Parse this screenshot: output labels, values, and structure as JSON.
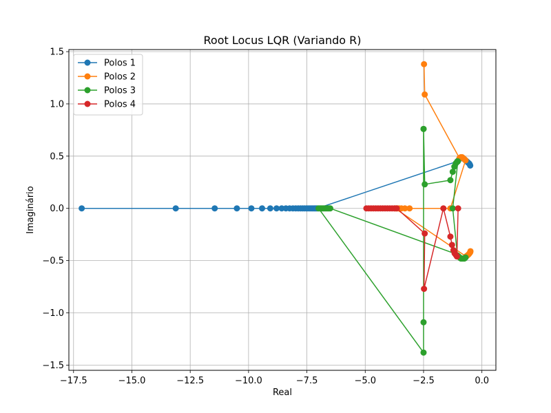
{
  "chart_data": {
    "type": "line",
    "title": "Root Locus LQR (Variando R)",
    "xlabel": "Real",
    "ylabel": "Imaginário",
    "xlim": [
      -17.7,
      0.6
    ],
    "ylim": [
      -1.55,
      1.52
    ],
    "xticks": [
      -17.5,
      -15.0,
      -12.5,
      -10.0,
      -7.5,
      -5.0,
      -2.5,
      0.0
    ],
    "xtick_labels": [
      "−17.5",
      "−15.0",
      "−12.5",
      "−10.0",
      "−7.5",
      "−5.0",
      "−2.5",
      "0.0"
    ],
    "yticks": [
      -1.5,
      -1.0,
      -0.5,
      0.0,
      0.5,
      1.0,
      1.5
    ],
    "ytick_labels": [
      "−1.5",
      "−1.0",
      "−0.5",
      "0.0",
      "0.5",
      "1.0",
      "1.5"
    ],
    "grid": true,
    "legend_position": "top-left",
    "series": [
      {
        "name": "Polos 1",
        "color": "#1f77b4",
        "points": [
          [
            -17.15,
            0
          ],
          [
            -13.12,
            0
          ],
          [
            -11.45,
            0
          ],
          [
            -10.5,
            0
          ],
          [
            -9.88,
            0
          ],
          [
            -9.42,
            0
          ],
          [
            -9.07,
            0
          ],
          [
            -8.8,
            0
          ],
          [
            -8.58,
            0
          ],
          [
            -8.4,
            0
          ],
          [
            -8.24,
            0
          ],
          [
            -8.1,
            0
          ],
          [
            -7.98,
            0
          ],
          [
            -7.87,
            0
          ],
          [
            -7.77,
            0
          ],
          [
            -7.68,
            0
          ],
          [
            -7.6,
            0
          ],
          [
            -7.52,
            0
          ],
          [
            -7.45,
            0
          ],
          [
            -7.38,
            0
          ],
          [
            -7.32,
            0
          ],
          [
            -7.26,
            0
          ],
          [
            -7.2,
            0
          ],
          [
            -7.15,
            0
          ],
          [
            -7.1,
            0
          ],
          [
            -7.05,
            0
          ],
          [
            -1.05,
            0.45
          ],
          [
            -0.98,
            0.47
          ],
          [
            -0.92,
            0.48
          ],
          [
            -0.86,
            0.48
          ],
          [
            -0.8,
            0.48
          ],
          [
            -0.75,
            0.47
          ],
          [
            -0.7,
            0.46
          ],
          [
            -0.65,
            0.45
          ],
          [
            -0.6,
            0.44
          ],
          [
            -0.55,
            0.43
          ],
          [
            -0.52,
            0.42
          ],
          [
            -0.5,
            0.41
          ]
        ]
      },
      {
        "name": "Polos 2",
        "color": "#ff7f0e",
        "points": [
          [
            -2.48,
            1.38
          ],
          [
            -2.45,
            1.09
          ],
          [
            -0.96,
            0.48
          ],
          [
            -0.9,
            0.49
          ],
          [
            -0.85,
            0.49
          ],
          [
            -0.8,
            0.48
          ],
          [
            -0.75,
            0.47
          ],
          [
            -0.7,
            0.46
          ],
          [
            -1.35,
            0
          ],
          [
            -3.1,
            0
          ],
          [
            -3.3,
            0
          ],
          [
            -3.45,
            0
          ],
          [
            -3.55,
            0
          ],
          [
            -3.62,
            0
          ],
          [
            -3.68,
            0
          ],
          [
            -3.72,
            0
          ],
          [
            -0.68,
            -0.46
          ],
          [
            -0.62,
            -0.45
          ],
          [
            -0.57,
            -0.44
          ],
          [
            -0.53,
            -0.43
          ],
          [
            -0.5,
            -0.42
          ],
          [
            -0.49,
            -0.41
          ]
        ]
      },
      {
        "name": "Polos 3",
        "color": "#2ca02c",
        "points": [
          [
            -2.5,
            0.76
          ],
          [
            -2.45,
            0.23
          ],
          [
            -1.35,
            0.27
          ],
          [
            -1.25,
            0.35
          ],
          [
            -1.18,
            0.4
          ],
          [
            -1.12,
            0.43
          ],
          [
            -1.08,
            0.44
          ],
          [
            -1.05,
            0.45
          ],
          [
            -1.03,
            0.45
          ],
          [
            -1.25,
            0
          ],
          [
            -1.05,
            -0.45
          ],
          [
            -1.0,
            -0.46
          ],
          [
            -0.95,
            -0.47
          ],
          [
            -0.9,
            -0.48
          ],
          [
            -0.85,
            -0.48
          ],
          [
            -0.8,
            -0.48
          ],
          [
            -0.75,
            -0.48
          ],
          [
            -0.7,
            -0.47
          ],
          [
            -6.5,
            0
          ],
          [
            -6.55,
            0
          ],
          [
            -6.6,
            0
          ],
          [
            -6.65,
            0
          ],
          [
            -6.7,
            0
          ],
          [
            -6.75,
            0
          ],
          [
            -6.8,
            0
          ],
          [
            -6.85,
            0
          ],
          [
            -6.9,
            0
          ],
          [
            -6.95,
            0
          ],
          [
            -7.0,
            0
          ],
          [
            -2.5,
            -1.38
          ],
          [
            -2.5,
            -1.09
          ],
          [
            -2.5,
            0.76
          ]
        ]
      },
      {
        "name": "Polos 4",
        "color": "#d62728",
        "points": [
          [
            -4.95,
            0
          ],
          [
            -4.85,
            0
          ],
          [
            -4.75,
            0
          ],
          [
            -4.65,
            0
          ],
          [
            -4.55,
            0
          ],
          [
            -4.45,
            0
          ],
          [
            -4.35,
            0
          ],
          [
            -4.25,
            0
          ],
          [
            -4.15,
            0
          ],
          [
            -4.05,
            0
          ],
          [
            -3.95,
            0
          ],
          [
            -3.85,
            0
          ],
          [
            -3.75,
            0
          ],
          [
            -3.65,
            0
          ],
          [
            -2.45,
            -0.24
          ],
          [
            -2.48,
            -0.77
          ],
          [
            -1.65,
            0
          ],
          [
            -1.35,
            -0.27
          ],
          [
            -1.28,
            -0.35
          ],
          [
            -1.22,
            -0.4
          ],
          [
            -1.17,
            -0.43
          ],
          [
            -1.13,
            -0.44
          ],
          [
            -1.1,
            -0.45
          ],
          [
            -1.07,
            -0.46
          ],
          [
            -1.02,
            0
          ]
        ]
      }
    ]
  }
}
